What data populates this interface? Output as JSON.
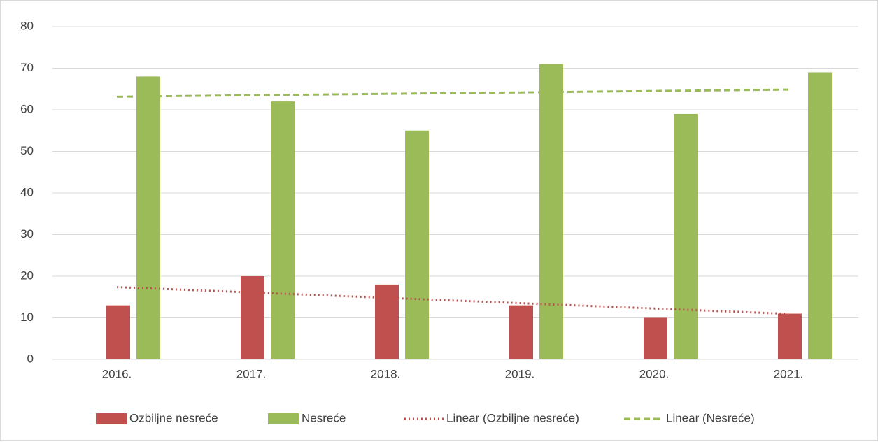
{
  "chart_data": {
    "type": "bar",
    "categories": [
      "2016.",
      "2017.",
      "2018.",
      "2019.",
      "2020.",
      "2021."
    ],
    "series": [
      {
        "name": "Ozbiljne nesreće",
        "color": "#c0504d",
        "values": [
          13,
          20,
          18,
          13,
          10,
          11
        ]
      },
      {
        "name": "Nesreće",
        "color": "#9bbb59",
        "values": [
          68,
          62,
          55,
          71,
          59,
          69
        ]
      },
      {
        "name": "Linear (Ozbiljne nesreće)",
        "type": "line",
        "dash": "dotted",
        "color": "#c0504d",
        "values": [
          17.38,
          16.1,
          14.81,
          13.52,
          12.24,
          10.95
        ]
      },
      {
        "name": "Linear (Nesreće)",
        "type": "line",
        "dash": "dashed",
        "color": "#9bbb59",
        "values": [
          63.14,
          63.49,
          63.83,
          64.17,
          64.51,
          64.86
        ]
      }
    ],
    "ylim": [
      0,
      80
    ],
    "yticks": [
      0,
      10,
      20,
      30,
      40,
      50,
      60,
      70,
      80
    ],
    "grid": true,
    "legend": "bottom"
  }
}
